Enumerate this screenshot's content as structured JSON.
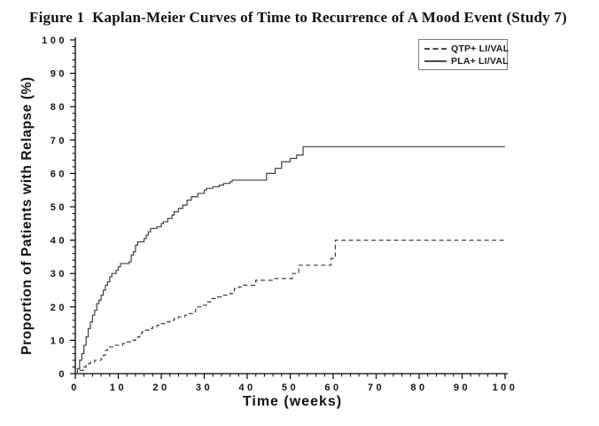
{
  "chart_data": {
    "type": "line",
    "subtype": "kaplan-meier-step",
    "title": "Figure 1  Kaplan-Meier Curves of Time to Recurrence of A Mood Event (Study 7)",
    "xlabel": "Time (weeks)",
    "ylabel": "Proportion of Patients with Relapse (%)",
    "xlim": [
      0,
      100
    ],
    "ylim": [
      0,
      100
    ],
    "x_major_ticks": [
      0,
      10,
      20,
      30,
      40,
      50,
      60,
      70,
      80,
      90,
      100
    ],
    "y_major_ticks": [
      0,
      10,
      20,
      30,
      40,
      50,
      60,
      70,
      80,
      90,
      100
    ],
    "minor_tick_step": 2,
    "grid": false,
    "line_color": "#3f3f3f",
    "axis_color": "#000000",
    "legend": {
      "position": "top-right",
      "entries": [
        {
          "label": "QTP+ LI/VAL",
          "line_style": "dashed"
        },
        {
          "label": "PLA+ LI/VAL",
          "line_style": "solid"
        }
      ]
    },
    "series": [
      {
        "name": "QTP+ LI/VAL",
        "line_style": "dashed",
        "step_points": [
          [
            0,
            0
          ],
          [
            1,
            1
          ],
          [
            2,
            2
          ],
          [
            2.5,
            3
          ],
          [
            3.5,
            3.5
          ],
          [
            4.5,
            4
          ],
          [
            6,
            4.5
          ],
          [
            6.5,
            5.5
          ],
          [
            7,
            7
          ],
          [
            7.5,
            8
          ],
          [
            9,
            8.5
          ],
          [
            11,
            9
          ],
          [
            12,
            9.5
          ],
          [
            13,
            10
          ],
          [
            14,
            10.5
          ],
          [
            14.5,
            11
          ],
          [
            15,
            12
          ],
          [
            15.5,
            12.5
          ],
          [
            16,
            13
          ],
          [
            17,
            13.5
          ],
          [
            18,
            14
          ],
          [
            19,
            14.5
          ],
          [
            20,
            15
          ],
          [
            21,
            15.5
          ],
          [
            22,
            16
          ],
          [
            23,
            16.5
          ],
          [
            24,
            17
          ],
          [
            25.5,
            17.5
          ],
          [
            26.5,
            18
          ],
          [
            27.5,
            18.5
          ],
          [
            28,
            19.5
          ],
          [
            28.5,
            20
          ],
          [
            29.5,
            20.5
          ],
          [
            30.5,
            21.5
          ],
          [
            31.5,
            22.5
          ],
          [
            32.5,
            23
          ],
          [
            34,
            23.5
          ],
          [
            36,
            24
          ],
          [
            37,
            25.5
          ],
          [
            38,
            26
          ],
          [
            39,
            26.5
          ],
          [
            42,
            28
          ],
          [
            46,
            28.5
          ],
          [
            50.5,
            30
          ],
          [
            52,
            32.5
          ],
          [
            59.5,
            34.5
          ],
          [
            60.5,
            40
          ],
          [
            100,
            40
          ]
        ]
      },
      {
        "name": "PLA+ LI/VAL",
        "line_style": "solid",
        "step_points": [
          [
            0,
            0
          ],
          [
            0.5,
            1.5
          ],
          [
            1,
            4
          ],
          [
            1.5,
            6
          ],
          [
            2,
            8.5
          ],
          [
            2.5,
            11
          ],
          [
            3,
            13.5
          ],
          [
            3.5,
            15.5
          ],
          [
            4,
            17.5
          ],
          [
            4.5,
            19
          ],
          [
            5,
            21
          ],
          [
            5.5,
            22
          ],
          [
            6,
            23.5
          ],
          [
            6.5,
            25
          ],
          [
            7,
            26.5
          ],
          [
            7.5,
            27.5
          ],
          [
            8,
            29
          ],
          [
            8.5,
            30
          ],
          [
            9.5,
            31
          ],
          [
            10,
            32
          ],
          [
            10.5,
            33
          ],
          [
            12.5,
            33.5
          ],
          [
            13,
            35.5
          ],
          [
            13.5,
            36.5
          ],
          [
            14,
            38.5
          ],
          [
            14.5,
            39.5
          ],
          [
            16,
            40.5
          ],
          [
            16.5,
            41.5
          ],
          [
            17,
            42.5
          ],
          [
            17.5,
            43.5
          ],
          [
            19,
            44
          ],
          [
            20,
            45
          ],
          [
            20.5,
            45.5
          ],
          [
            21.5,
            46.5
          ],
          [
            22.5,
            47.5
          ],
          [
            23,
            48.5
          ],
          [
            24,
            49.5
          ],
          [
            25,
            50.5
          ],
          [
            26,
            52
          ],
          [
            27,
            53
          ],
          [
            28.5,
            54
          ],
          [
            30,
            55
          ],
          [
            30.5,
            55.5
          ],
          [
            32,
            56
          ],
          [
            33.5,
            56.5
          ],
          [
            34.5,
            57
          ],
          [
            36,
            57.5
          ],
          [
            36.5,
            58
          ],
          [
            44.5,
            60
          ],
          [
            46.5,
            61.5
          ],
          [
            48,
            63.5
          ],
          [
            50,
            64.5
          ],
          [
            51.5,
            65.5
          ],
          [
            53,
            68
          ],
          [
            100,
            68
          ]
        ]
      }
    ]
  }
}
